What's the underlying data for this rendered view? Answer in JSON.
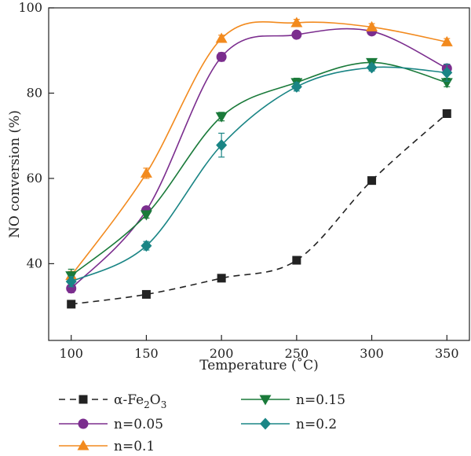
{
  "chart_data": {
    "type": "line",
    "xlabel": "Temperature (˚C)",
    "ylabel": "NO conversion (%)",
    "xlim": [
      85,
      365
    ],
    "ylim": [
      22,
      100
    ],
    "xticks": [
      100,
      150,
      200,
      250,
      300,
      350
    ],
    "yticks": [
      40,
      60,
      80,
      100
    ],
    "grid": false,
    "legend_position": "bottom",
    "x": [
      100,
      150,
      200,
      250,
      300,
      350
    ],
    "series": [
      {
        "name": "α-Fe2O3",
        "name_parts": {
          "base": "α-Fe",
          "sub1": "2",
          "mid": "O",
          "sub2": "3"
        },
        "values": [
          30.5,
          32.8,
          36.6,
          40.8,
          59.5,
          75.2
        ],
        "errors": [
          0,
          0,
          0,
          0,
          0,
          0
        ],
        "color": "#222222",
        "marker": "square",
        "dashed": true
      },
      {
        "name": "n=0.05",
        "values": [
          34.2,
          52.5,
          88.5,
          93.7,
          94.5,
          85.8
        ],
        "errors": [
          1.0,
          0.8,
          1.0,
          0.8,
          0.8,
          1.0
        ],
        "color": "#7b2d8e",
        "marker": "circle",
        "dashed": false
      },
      {
        "name": "n=0.1",
        "values": [
          37.2,
          61.2,
          92.8,
          96.5,
          95.5,
          92.0
        ],
        "errors": [
          1.0,
          1.2,
          0.8,
          0.8,
          0.8,
          0.8
        ],
        "color": "#f28a1e",
        "marker": "triangle-up",
        "dashed": false
      },
      {
        "name": "n=0.15",
        "values": [
          37.2,
          51.5,
          74.5,
          82.5,
          87.2,
          82.5
        ],
        "errors": [
          1.5,
          0.8,
          1.0,
          1.0,
          0.8,
          1.0
        ],
        "color": "#1a7a3a",
        "marker": "triangle-down",
        "dashed": false
      },
      {
        "name": "n=0.2",
        "values": [
          35.8,
          44.2,
          67.8,
          81.5,
          86.0,
          84.8
        ],
        "errors": [
          1.2,
          1.0,
          2.8,
          1.0,
          0.8,
          2.0
        ],
        "color": "#1a8585",
        "marker": "diamond",
        "dashed": false
      }
    ]
  }
}
